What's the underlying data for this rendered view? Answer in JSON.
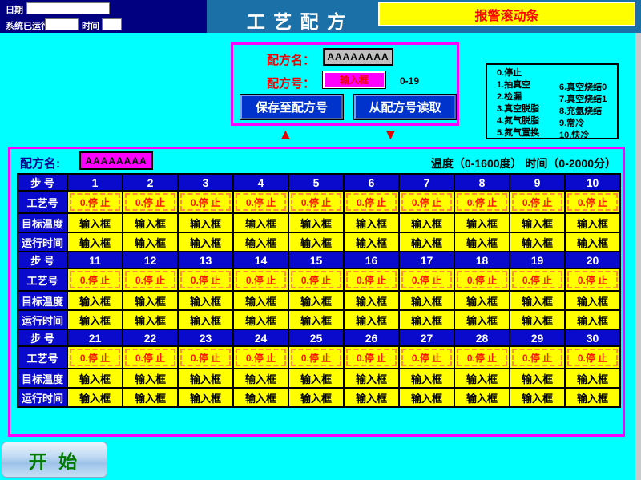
{
  "colors": {
    "background": "#00FFFF",
    "header_band": "#1C70A8",
    "navy_panel": "#000080",
    "panel_border_magenta": "#FF00FF",
    "cell_yellow": "#FFFF00",
    "cell_blue": "#0A0ACD",
    "alarm_text_red": "#FF0000",
    "button_blue": "#0033CC",
    "start_text_green": "#007A00"
  },
  "header": {
    "date_label": "日期",
    "date_value": "",
    "runtime_label": "系统已运行",
    "runtime_value": "",
    "time_label": "时间",
    "time_value": "",
    "title": "工 艺 配 方",
    "alarm_text": "报警滚动条"
  },
  "recipe_panel": {
    "name_label": "配方名：",
    "name_value": "AAAAAAAA",
    "no_label": "配方号：",
    "no_input_placeholder": "输入框",
    "no_range": "0-19",
    "save_button": "保存至配方号",
    "load_button": "从配方号读取",
    "up_arrow": "▲",
    "down_arrow": "▼"
  },
  "legend": {
    "items_left": [
      "0.停止",
      "1.抽真空",
      "2.检漏",
      "3.真空脱脂",
      "4.氮气脱脂",
      "5.氮气置换"
    ],
    "items_right": [
      "6.真空烧结0",
      "7.真空烧结1",
      "8.充氩烧结",
      "9.常冷",
      "10.快冷"
    ]
  },
  "table": {
    "name_label": "配方名:",
    "name_value": "AAAAAAAA",
    "range_text": "温度（0-1600度）  时间（0-2000分）",
    "row_labels": {
      "step": "步 号",
      "process": "工艺号",
      "temp": "目标温度",
      "time": "运行时间"
    },
    "process_value": "0.停 止",
    "input_value": "输入框",
    "groups": [
      {
        "steps": [
          1,
          2,
          3,
          4,
          5,
          6,
          7,
          8,
          9,
          10
        ]
      },
      {
        "steps": [
          11,
          12,
          13,
          14,
          15,
          16,
          17,
          18,
          19,
          20
        ]
      },
      {
        "steps": [
          21,
          22,
          23,
          24,
          25,
          26,
          27,
          28,
          29,
          30
        ]
      }
    ]
  },
  "footer": {
    "start_label": "开 始"
  }
}
